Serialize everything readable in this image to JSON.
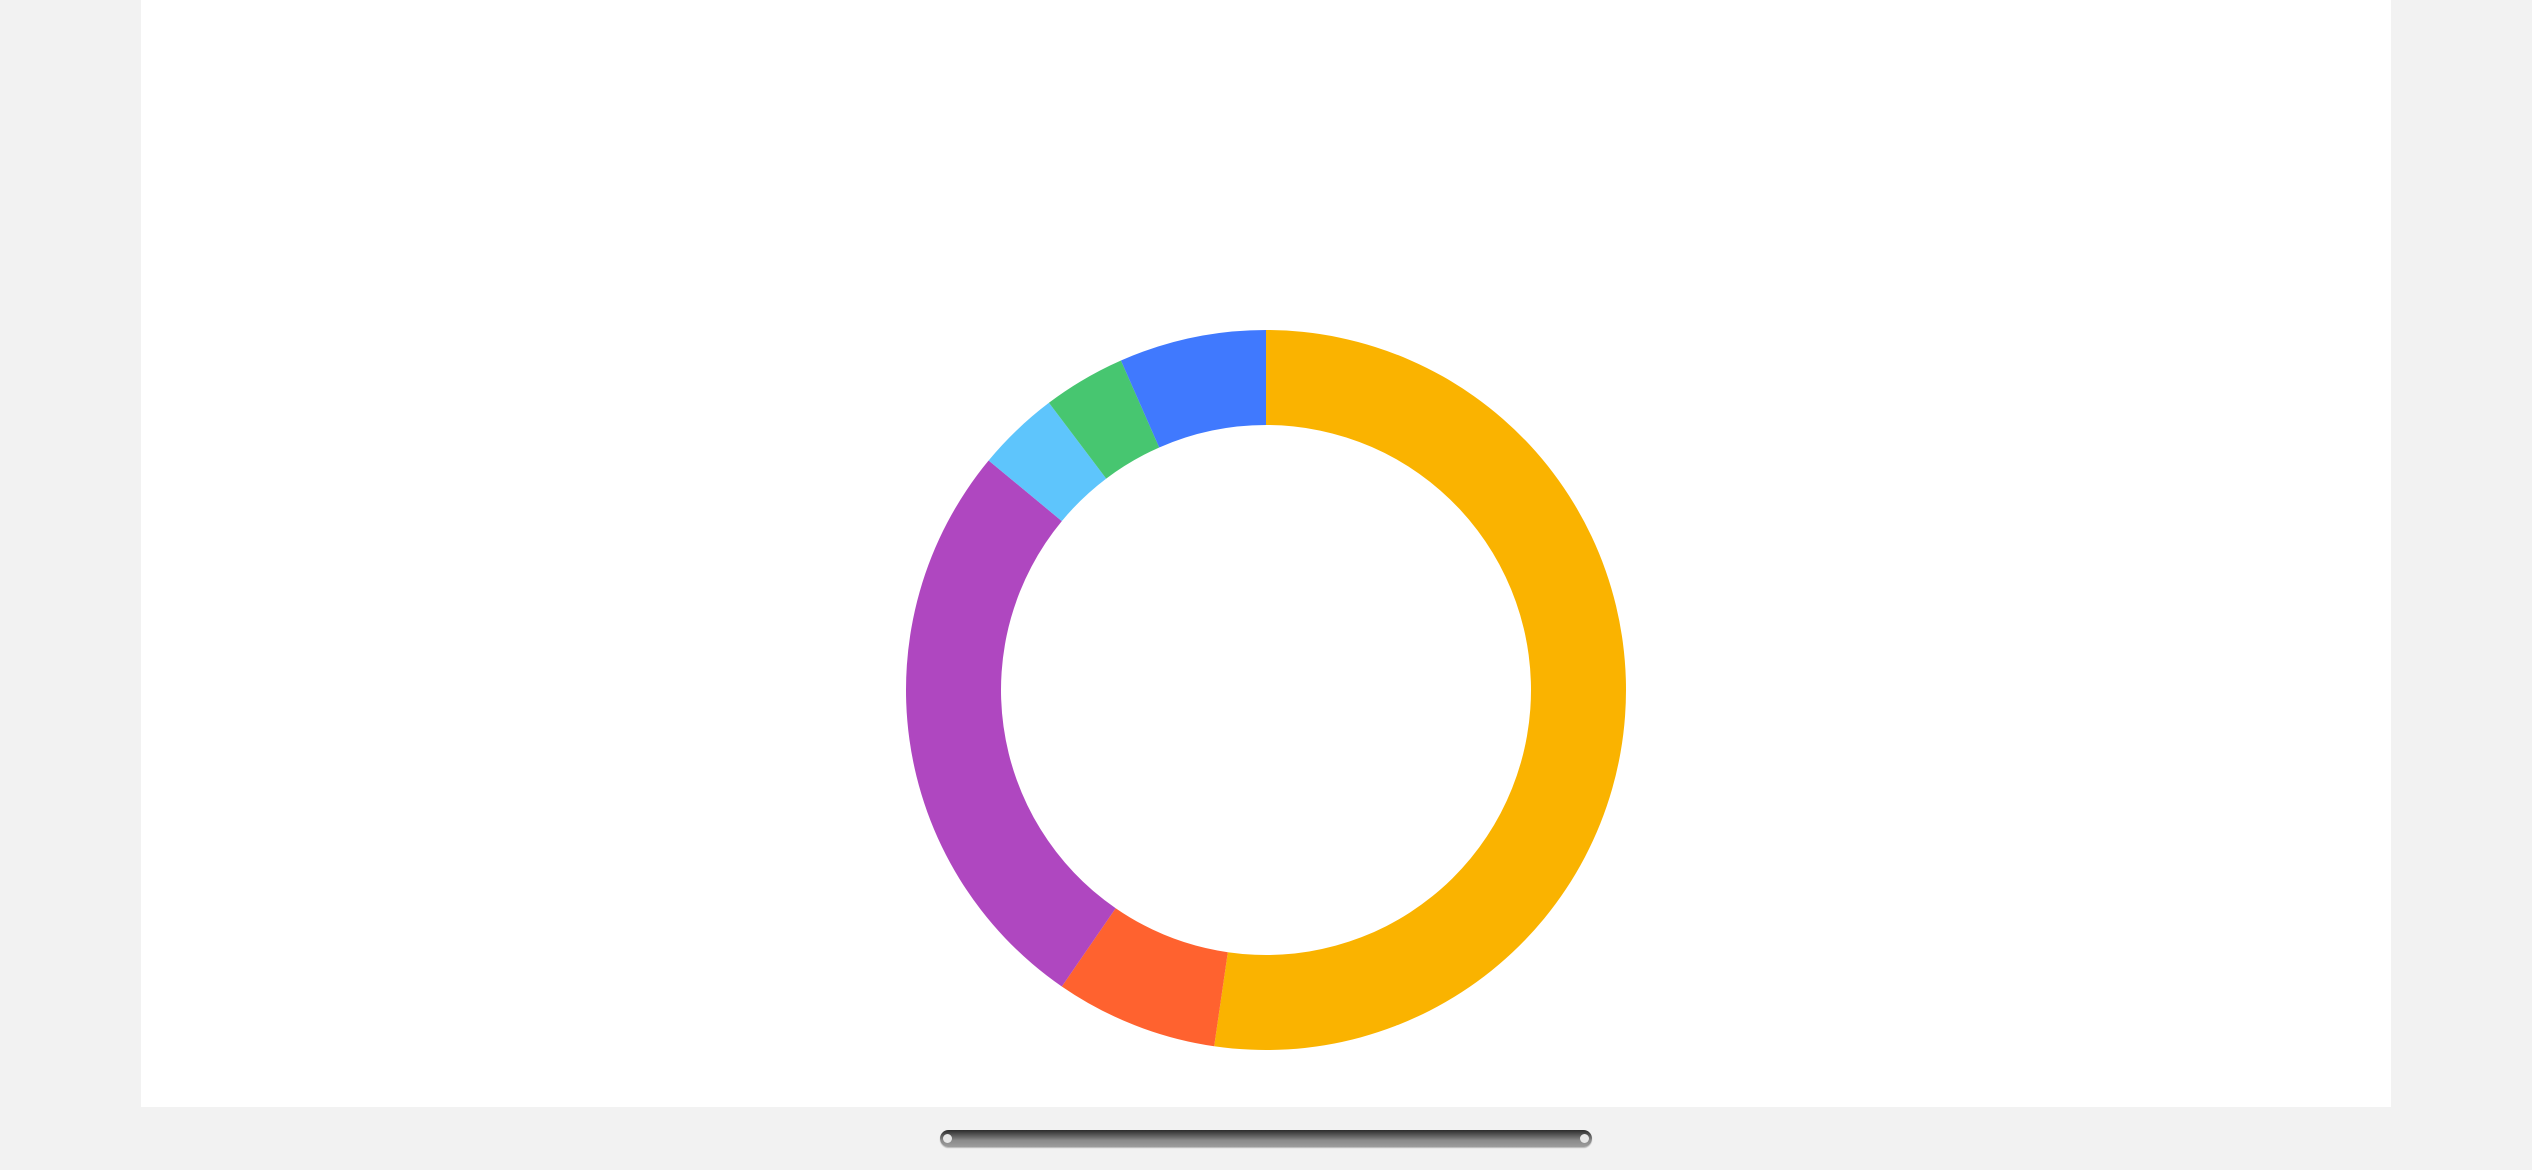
{
  "chart_data": {
    "type": "pie",
    "variant": "donut",
    "start_angle_deg": 0,
    "direction": "clockwise",
    "title": "",
    "legend": "none",
    "slices": [
      {
        "value": 52.3,
        "color": "#fab300"
      },
      {
        "value": 7.3,
        "color": "#ff622f"
      },
      {
        "value": 26.4,
        "color": "#af47c0"
      },
      {
        "value": 3.7,
        "color": "#5ec5fc"
      },
      {
        "value": 3.7,
        "color": "#47c670"
      },
      {
        "value": 6.6,
        "color": "#4079fe"
      }
    ]
  },
  "scrollbar": {
    "position": 0
  }
}
